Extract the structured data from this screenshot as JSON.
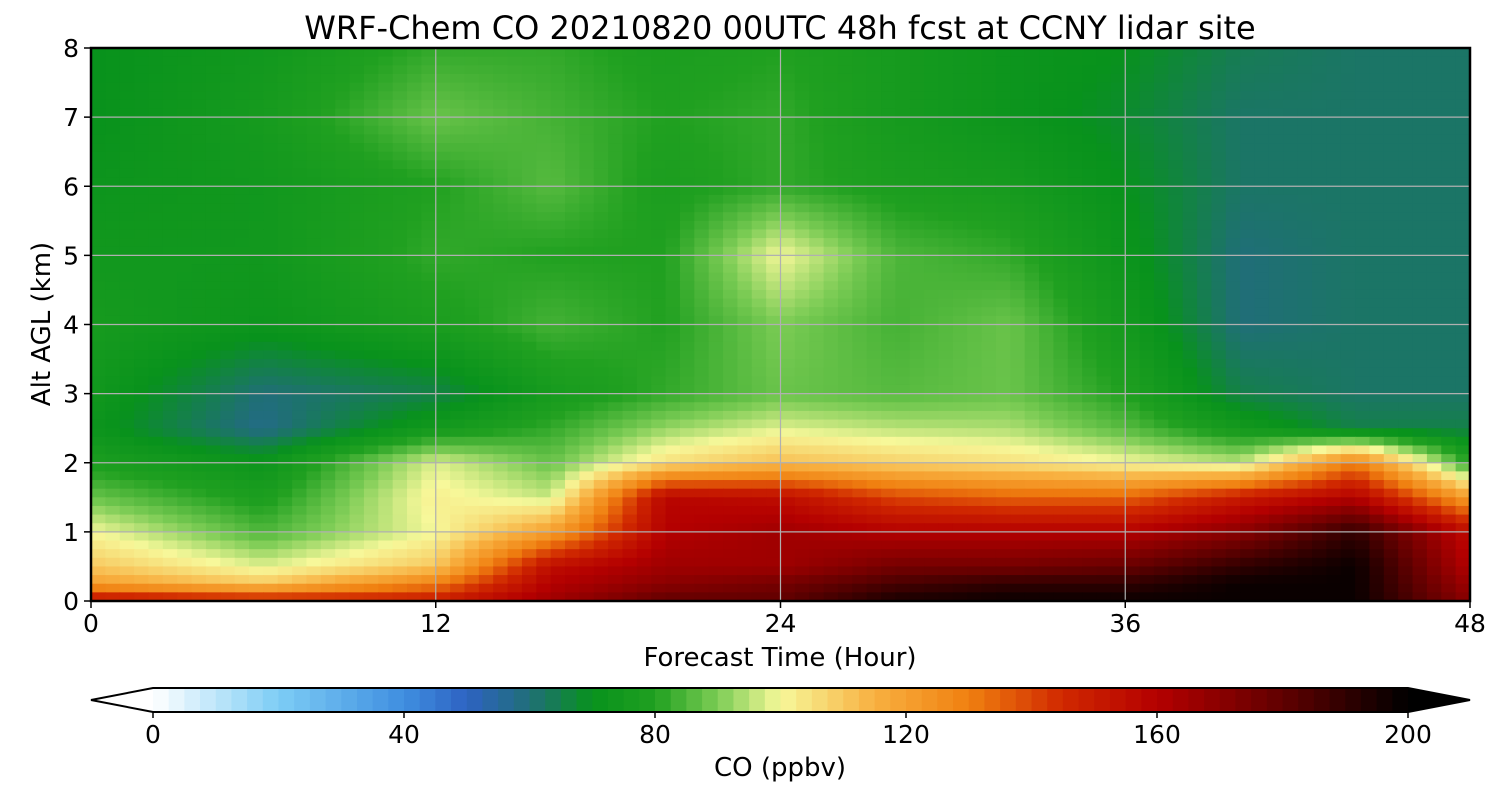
{
  "chart_data": {
    "type": "heatmap",
    "title": "WRF-Chem CO  20210820 00UTC 48h fcst at CCNY lidar site",
    "xlabel": "Forecast Time (Hour)",
    "ylabel": "Alt AGL (km)",
    "xlim": [
      0,
      48
    ],
    "ylim": [
      0,
      8
    ],
    "xticks": [
      "0",
      "12",
      "24",
      "36",
      "48"
    ],
    "yticks": [
      "0",
      "1",
      "2",
      "3",
      "4",
      "5",
      "6",
      "7",
      "8"
    ],
    "grid": true,
    "colorbar": {
      "label": "CO  (ppbv)",
      "range": [
        0,
        200
      ],
      "extend": "both",
      "ticks": [
        "0",
        "40",
        "80",
        "120",
        "160",
        "200"
      ],
      "stops": [
        {
          "value": 0,
          "color": "#ffffff"
        },
        {
          "value": 20,
          "color": "#7dcdf5"
        },
        {
          "value": 40,
          "color": "#3f8ee0"
        },
        {
          "value": 50,
          "color": "#2e63c2"
        },
        {
          "value": 60,
          "color": "#206e78"
        },
        {
          "value": 70,
          "color": "#08921c"
        },
        {
          "value": 80,
          "color": "#20a020"
        },
        {
          "value": 90,
          "color": "#7ccc55"
        },
        {
          "value": 100,
          "color": "#f7f89a"
        },
        {
          "value": 115,
          "color": "#f8b040"
        },
        {
          "value": 130,
          "color": "#f08010"
        },
        {
          "value": 145,
          "color": "#d02800"
        },
        {
          "value": 160,
          "color": "#b40000"
        },
        {
          "value": 180,
          "color": "#600000"
        },
        {
          "value": 200,
          "color": "#000000"
        }
      ]
    },
    "x": [
      0,
      6,
      12,
      16,
      20,
      24,
      28,
      32,
      36,
      40,
      44,
      48
    ],
    "y": [
      0,
      0.25,
      0.5,
      1,
      1.5,
      2,
      2.5,
      3,
      4,
      5,
      6,
      7,
      8
    ],
    "z": [
      [
        155,
        150,
        150,
        165,
        180,
        180,
        195,
        198,
        198,
        198,
        198,
        170
      ],
      [
        120,
        110,
        130,
        160,
        170,
        175,
        185,
        190,
        190,
        198,
        198,
        165
      ],
      [
        110,
        98,
        110,
        155,
        165,
        165,
        175,
        175,
        178,
        190,
        198,
        160
      ],
      [
        100,
        85,
        100,
        120,
        160,
        165,
        160,
        160,
        160,
        170,
        190,
        155
      ],
      [
        88,
        78,
        102,
        96,
        158,
        155,
        140,
        135,
        135,
        150,
        160,
        120
      ],
      [
        78,
        72,
        98,
        88,
        105,
        112,
        108,
        105,
        100,
        95,
        130,
        80
      ],
      [
        72,
        58,
        75,
        82,
        92,
        98,
        95,
        94,
        86,
        75,
        65,
        65
      ],
      [
        74,
        60,
        65,
        76,
        82,
        88,
        86,
        88,
        80,
        65,
        62,
        62
      ],
      [
        76,
        72,
        78,
        84,
        80,
        90,
        84,
        88,
        75,
        60,
        62,
        62
      ],
      [
        74,
        74,
        82,
        80,
        80,
        100,
        85,
        82,
        72,
        60,
        62,
        62
      ],
      [
        72,
        74,
        80,
        86,
        78,
        82,
        78,
        76,
        70,
        62,
        62,
        62
      ],
      [
        70,
        76,
        88,
        84,
        80,
        82,
        76,
        72,
        68,
        62,
        62,
        62
      ],
      [
        70,
        74,
        82,
        82,
        78,
        80,
        76,
        72,
        70,
        64,
        62,
        62
      ]
    ]
  }
}
